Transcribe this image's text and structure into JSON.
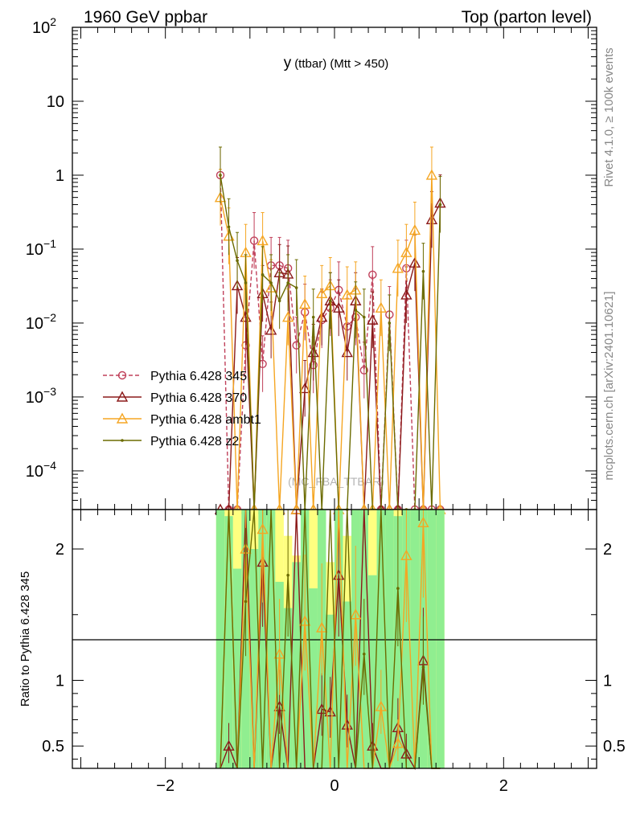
{
  "header": {
    "left": "1960 GeV ppbar",
    "right": "Top (parton level)"
  },
  "side_labels": {
    "rivet": "Rivet 4.1.0, ≥ 100k events",
    "mcplots": "mcplots.cern.ch [arXiv:2401.10621]"
  },
  "chart_data": {
    "type": "line",
    "title": "y",
    "title_suffix": "(ttbar) (Mtt > 450)",
    "watermark": "(MC_FBA_TTBAR)",
    "xlim": [
      -3.1,
      3.1
    ],
    "ylim_main": [
      3e-05,
      100
    ],
    "ylog": true,
    "ratio_ylabel": "Ratio to Pythia 6.428 345",
    "ratio_ylim": [
      0.33,
      2.3
    ],
    "main_yticks": [
      {
        "v": 100,
        "base": "10",
        "exp": "2"
      },
      {
        "v": 10,
        "base": "10",
        "exp": ""
      },
      {
        "v": 1,
        "base": "1",
        "exp": ""
      },
      {
        "v": 0.1,
        "base": "10",
        "exp": "−1"
      },
      {
        "v": 0.01,
        "base": "10",
        "exp": "−2"
      },
      {
        "v": 0.001,
        "base": "10",
        "exp": "−3"
      },
      {
        "v": 0.0001,
        "base": "10",
        "exp": "−4"
      }
    ],
    "ratio_yticks": [
      {
        "v": 2,
        "label": "2"
      },
      {
        "v": 1,
        "label": "1"
      },
      {
        "v": 0.5,
        "label": "0.5"
      }
    ],
    "xticks": [
      {
        "v": -2,
        "label": "−2"
      },
      {
        "v": 0,
        "label": "0"
      },
      {
        "v": 2,
        "label": "2"
      }
    ],
    "x": [
      -1.35,
      -1.25,
      -1.15,
      -1.05,
      -0.95,
      -0.85,
      -0.75,
      -0.65,
      -0.55,
      -0.45,
      -0.35,
      -0.25,
      -0.15,
      -0.05,
      0.05,
      0.15,
      0.25,
      0.35,
      0.45,
      0.55,
      0.65,
      0.75,
      0.85,
      0.95,
      1.05,
      1.15,
      1.25
    ],
    "band_x": [
      -1.4,
      -1.3,
      -1.2,
      -1.1,
      -1.0,
      -0.9,
      -0.8,
      -0.7,
      -0.6,
      -0.5,
      -0.4,
      -0.3,
      -0.2,
      -0.1,
      0.0,
      0.1,
      0.2,
      0.3,
      0.4,
      0.5,
      0.6,
      0.7,
      0.8,
      0.9,
      1.0,
      1.1,
      1.2,
      1.3
    ],
    "band_yellow_top": [
      2.3,
      2.3,
      2.3,
      2.3,
      2.3,
      2.3,
      2.3,
      2.3,
      2.1,
      1.95,
      2.3,
      2.3,
      2.3,
      1.9,
      2.3,
      2.1,
      2.3,
      2.3,
      2.3,
      2.3,
      2.3,
      2.3,
      2.3,
      2.3,
      2.3,
      2.3,
      2.3
    ],
    "band_green_top": [
      2.3,
      2.25,
      1.85,
      2.3,
      2.0,
      2.3,
      2.3,
      1.75,
      1.55,
      1.9,
      2.3,
      1.7,
      2.3,
      1.5,
      2.3,
      1.6,
      2.3,
      2.3,
      1.8,
      2.3,
      2.3,
      2.25,
      2.3,
      2.3,
      2.3,
      2.3,
      2.3
    ],
    "series": [
      {
        "name": "Pythia 6.428 345",
        "color": "#c0405a",
        "dash": "5,3",
        "marker": "circle",
        "values": [
          1.0,
          3e-05,
          3e-05,
          0.005,
          0.13,
          0.0028,
          0.06,
          0.06,
          0.055,
          0.005,
          0.014,
          0.0027,
          0.011,
          0.016,
          0.028,
          0.009,
          0.012,
          0.0023,
          0.045,
          3e-05,
          0.013,
          3e-05,
          0.055,
          3e-05,
          3e-05,
          3e-05,
          3e-05
        ],
        "ratio": null
      },
      {
        "name": "Pythia 6.428 370",
        "color": "#8b1a1a",
        "dash": "",
        "marker": "triangle",
        "values": [
          3e-05,
          3e-05,
          0.032,
          0.012,
          3e-05,
          0.025,
          0.008,
          0.048,
          0.046,
          3e-05,
          0.0013,
          0.004,
          0.012,
          0.02,
          0.016,
          0.004,
          0.02,
          3e-05,
          0.011,
          3e-05,
          3e-05,
          3e-05,
          0.024,
          0.065,
          3e-05,
          0.25,
          0.42
        ],
        "ratio": [
          0.33,
          0.5,
          0.33,
          2.3,
          0.33,
          1.9,
          0.33,
          0.8,
          0.33,
          2.3,
          0.33,
          0.33,
          0.78,
          0.76,
          1.8,
          0.66,
          0.33,
          2.3,
          0.5,
          0.33,
          0.33,
          0.64,
          0.44,
          0.33,
          1.15,
          0.33,
          0.33
        ]
      },
      {
        "name": "Pythia 6.428 ambt1",
        "color": "#f5a623",
        "dash": "",
        "marker": "triangle",
        "values": [
          0.5,
          0.15,
          3e-05,
          0.09,
          3e-05,
          0.13,
          0.03,
          3e-05,
          0.012,
          3e-05,
          0.018,
          3e-05,
          0.025,
          0.032,
          3e-05,
          0.024,
          0.028,
          3e-05,
          3e-05,
          0.016,
          3e-05,
          0.055,
          0.09,
          0.18,
          3e-05,
          1.0,
          3e-05
        ],
        "ratio": [
          0.33,
          2.3,
          0.33,
          2.0,
          0.33,
          2.15,
          0.33,
          1.2,
          0.33,
          0.33,
          1.45,
          0.33,
          1.4,
          0.33,
          2.3,
          0.33,
          1.5,
          0.33,
          0.33,
          0.8,
          0.33,
          0.52,
          1.95,
          0.33,
          2.2,
          0.33,
          0.33
        ]
      },
      {
        "name": "Pythia 6.428 z2",
        "color": "#6b6b00",
        "dash": "",
        "marker": "dot",
        "values": [
          1.0,
          0.2,
          0.07,
          0.035,
          3e-05,
          0.045,
          0.035,
          0.02,
          0.035,
          0.03,
          3e-05,
          0.012,
          3e-05,
          0.02,
          3e-05,
          3e-05,
          0.015,
          0.012,
          3e-05,
          3e-05,
          0.01,
          3e-05,
          3e-05,
          3e-05,
          0.05,
          3e-05,
          0.4
        ],
        "ratio": [
          0.33,
          2.3,
          0.33,
          1.6,
          2.3,
          0.33,
          2.3,
          0.33,
          1.8,
          0.33,
          2.3,
          0.33,
          0.33,
          2.3,
          0.33,
          2.3,
          0.33,
          1.2,
          0.33,
          2.3,
          0.33,
          1.7,
          0.33,
          0.33,
          1.1,
          0.33,
          0.33
        ]
      }
    ]
  }
}
